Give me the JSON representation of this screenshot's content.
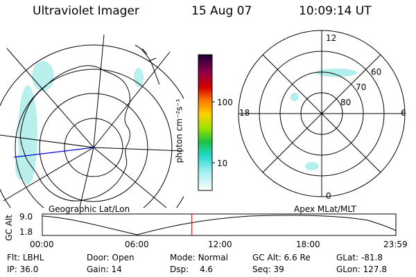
{
  "header": {
    "instrument": "Ultraviolet Imager",
    "date": "15 Aug 07",
    "time": "10:09:14 UT"
  },
  "colorbar": {
    "unit_label": "photon cm⁻²s⁻¹",
    "ticks": [
      "100",
      "10"
    ]
  },
  "left_map": {
    "caption": "Geographic Lat/Lon"
  },
  "right_map": {
    "caption": "Apex MLat/MLT",
    "mlt_labels": {
      "top": "12",
      "bottom": "0",
      "left": "18",
      "right": "6"
    },
    "lat_labels": [
      "60",
      "70",
      "80"
    ]
  },
  "altitude_plot": {
    "ylabel": "GC Alt",
    "yticks": [
      "9.0",
      "1.8"
    ],
    "xticks": [
      "00:00",
      "06:00",
      "12:00",
      "18:00",
      "23:59"
    ],
    "current_time_hours": 10.15
  },
  "status": {
    "filter": {
      "label": "Flt:",
      "value": "LBHL"
    },
    "ip": {
      "label": "IP:",
      "value": "36.0"
    },
    "door": {
      "label": "Door:",
      "value": "Open"
    },
    "gain": {
      "label": "Gain:",
      "value": "14"
    },
    "mode": {
      "label": "Mode:",
      "value": "Normal"
    },
    "dsp": {
      "label": "Dsp:",
      "value": "4.6"
    },
    "gc_alt": {
      "label": "GC Alt:",
      "value": "6.6 Re"
    },
    "seq": {
      "label": "Seq:",
      "value": "39"
    },
    "glat": {
      "label": "GLat:",
      "value": "-81.8"
    },
    "glon": {
      "label": "GLon:",
      "value": "127.8"
    }
  },
  "colors": {
    "marker": "#d00000",
    "meridian": "#0000cc",
    "aurora": "#7fe3e0"
  }
}
